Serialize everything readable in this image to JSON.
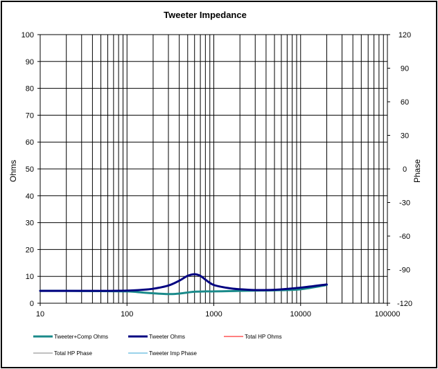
{
  "chart_data": {
    "type": "line",
    "title": "Tweeter  Impedance",
    "xlabel": "",
    "ylabel": "Ohms",
    "y2label": "Phase",
    "xscale": "log",
    "xlim": [
      10,
      100000
    ],
    "ylim": [
      0,
      100
    ],
    "y2lim": [
      -120,
      120
    ],
    "grid": true,
    "legend_position": "bottom",
    "xticks": [
      "10",
      "100",
      "1000",
      "10000",
      "100000"
    ],
    "yticks": [
      "0",
      "10",
      "20",
      "30",
      "40",
      "50",
      "60",
      "70",
      "80",
      "90",
      "100"
    ],
    "y2ticks": [
      "-120",
      "-90",
      "-60",
      "-30",
      "0",
      "30",
      "60",
      "90",
      "120"
    ],
    "series": [
      {
        "name": "Tweeter+Comp Ohms",
        "color": "#1a8a8a",
        "axis": "left",
        "x": [
          10,
          20,
          50,
          100,
          150,
          200,
          300,
          400,
          500,
          600,
          800,
          1000,
          1500,
          2000,
          3000,
          5000,
          10000,
          20000
        ],
        "y": [
          4.6,
          4.6,
          4.5,
          4.4,
          4.0,
          3.7,
          3.4,
          3.6,
          4.0,
          4.3,
          4.4,
          4.4,
          4.5,
          4.6,
          4.7,
          4.8,
          5.2,
          6.8
        ]
      },
      {
        "name": "Tweeter Ohms",
        "color": "#000080",
        "axis": "left",
        "x": [
          10,
          20,
          50,
          100,
          150,
          200,
          300,
          400,
          500,
          600,
          700,
          800,
          1000,
          1500,
          2000,
          3000,
          5000,
          10000,
          20000
        ],
        "y": [
          4.6,
          4.6,
          4.6,
          4.7,
          5.0,
          5.4,
          6.6,
          8.4,
          10.2,
          10.8,
          10.2,
          8.8,
          6.8,
          5.6,
          5.2,
          4.9,
          5.0,
          5.8,
          7.0
        ]
      },
      {
        "name": "Total HP Ohms",
        "color": "#ff0000",
        "axis": "left",
        "x": [],
        "y": []
      },
      {
        "name": "Total HP Phase",
        "color": "#808080",
        "axis": "right",
        "x": [],
        "y": []
      },
      {
        "name": "Tweeter Imp Phase",
        "color": "#33a6d6",
        "axis": "right",
        "x": [],
        "y": []
      }
    ]
  }
}
